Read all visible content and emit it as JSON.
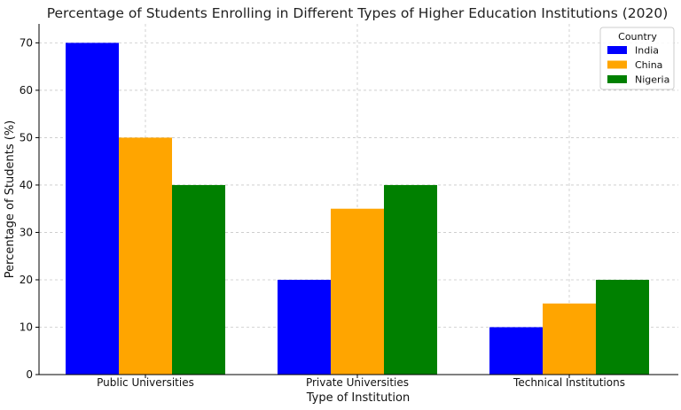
{
  "chart_data": {
    "type": "bar",
    "title": "Percentage of Students Enrolling in Different Types of Higher Education Institutions (2020)",
    "xlabel": "Type of Institution",
    "ylabel": "Percentage of Students (%)",
    "categories": [
      "Public Universities",
      "Private Universities",
      "Technical Institutions"
    ],
    "series": [
      {
        "name": "India",
        "color": "#0000ff",
        "values": [
          70,
          20,
          10
        ]
      },
      {
        "name": "China",
        "color": "#ffa500",
        "values": [
          50,
          35,
          15
        ]
      },
      {
        "name": "Nigeria",
        "color": "#008000",
        "values": [
          40,
          40,
          20
        ]
      }
    ],
    "ylim": [
      0,
      74
    ],
    "yticks": [
      0,
      10,
      20,
      30,
      40,
      50,
      60,
      70
    ],
    "grid": true,
    "legend": {
      "title": "Country",
      "placement": "top-right"
    }
  }
}
